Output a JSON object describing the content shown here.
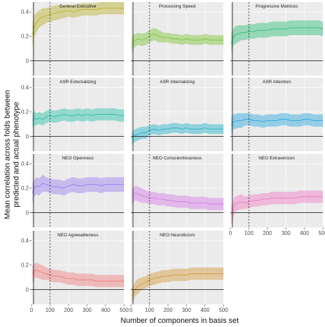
{
  "chart_data": {
    "type": "line",
    "xlabel": "Number of components in basis set",
    "ylabel_lines": [
      "Mean correlation across folds between",
      "predicted and actual phenotype"
    ],
    "xlim": [
      0,
      500
    ],
    "ylim": [
      -0.12,
      0.48
    ],
    "x_ticks": [
      0,
      100,
      200,
      300,
      400,
      500
    ],
    "y_ticks": [
      0,
      0.2,
      0.4
    ],
    "y_tick_labels": [
      "0",
      "0.2",
      "0.4"
    ],
    "reference_x": 100,
    "x": [
      5,
      15,
      25,
      40,
      60,
      80,
      100,
      125,
      150,
      175,
      200,
      225,
      250,
      275,
      300,
      325,
      350,
      375,
      400,
      425,
      450,
      475,
      500
    ],
    "panels": [
      {
        "title": "General Executive",
        "color": "#b8b02a",
        "mean": [
          0.21,
          0.28,
          0.31,
          0.34,
          0.36,
          0.37,
          0.38,
          0.39,
          0.4,
          0.4,
          0.41,
          0.4,
          0.41,
          0.42,
          0.42,
          0.42,
          0.42,
          0.43,
          0.43,
          0.43,
          0.43,
          0.43,
          0.43
        ],
        "halfwidth": [
          0.1,
          0.09,
          0.08,
          0.07,
          0.07,
          0.06,
          0.06,
          0.06,
          0.06,
          0.05,
          0.05,
          0.05,
          0.05,
          0.05,
          0.05,
          0.05,
          0.05,
          0.05,
          0.05,
          0.05,
          0.05,
          0.05,
          0.05
        ]
      },
      {
        "title": "Processing Speed",
        "color": "#7cc335",
        "mean": [
          0.13,
          0.16,
          0.17,
          0.18,
          0.17,
          0.18,
          0.2,
          0.22,
          0.2,
          0.19,
          0.19,
          0.18,
          0.18,
          0.17,
          0.18,
          0.17,
          0.17,
          0.17,
          0.18,
          0.17,
          0.17,
          0.17,
          0.17
        ],
        "halfwidth": [
          0.06,
          0.06,
          0.05,
          0.05,
          0.05,
          0.05,
          0.05,
          0.05,
          0.05,
          0.04,
          0.04,
          0.04,
          0.04,
          0.04,
          0.04,
          0.04,
          0.04,
          0.04,
          0.04,
          0.04,
          0.04,
          0.04,
          0.04
        ]
      },
      {
        "title": "Progressive Matrices",
        "color": "#2fbe78",
        "mean": [
          0.14,
          0.19,
          0.21,
          0.22,
          0.23,
          0.23,
          0.24,
          0.24,
          0.25,
          0.25,
          0.25,
          0.26,
          0.26,
          0.26,
          0.26,
          0.27,
          0.27,
          0.27,
          0.27,
          0.27,
          0.27,
          0.27,
          0.26
        ],
        "halfwidth": [
          0.08,
          0.07,
          0.07,
          0.07,
          0.06,
          0.06,
          0.06,
          0.06,
          0.06,
          0.06,
          0.06,
          0.06,
          0.06,
          0.06,
          0.06,
          0.06,
          0.06,
          0.06,
          0.06,
          0.06,
          0.06,
          0.06,
          0.06
        ]
      },
      {
        "title": "ASR Externalizing",
        "color": "#27c0a8",
        "mean": [
          0.13,
          0.15,
          0.14,
          0.15,
          0.14,
          0.16,
          0.17,
          0.16,
          0.17,
          0.18,
          0.17,
          0.17,
          0.18,
          0.17,
          0.18,
          0.17,
          0.18,
          0.18,
          0.18,
          0.18,
          0.18,
          0.17,
          0.17
        ],
        "halfwidth": [
          0.06,
          0.06,
          0.05,
          0.05,
          0.05,
          0.05,
          0.05,
          0.05,
          0.05,
          0.05,
          0.05,
          0.05,
          0.05,
          0.05,
          0.05,
          0.05,
          0.05,
          0.05,
          0.05,
          0.05,
          0.05,
          0.05,
          0.05
        ]
      },
      {
        "title": "ASR Internalizing",
        "color": "#22b4c9",
        "mean": [
          -0.02,
          0.0,
          0.01,
          0.02,
          0.03,
          0.03,
          0.05,
          0.06,
          0.05,
          0.06,
          0.06,
          0.07,
          0.07,
          0.06,
          0.07,
          0.06,
          0.06,
          0.06,
          0.07,
          0.06,
          0.06,
          0.06,
          0.06
        ],
        "halfwidth": [
          0.05,
          0.05,
          0.05,
          0.05,
          0.05,
          0.05,
          0.04,
          0.04,
          0.04,
          0.04,
          0.04,
          0.04,
          0.04,
          0.04,
          0.04,
          0.04,
          0.04,
          0.04,
          0.04,
          0.04,
          0.04,
          0.04,
          0.04
        ]
      },
      {
        "title": "ASR Attention",
        "color": "#2aa7e0",
        "mean": [
          0.09,
          0.12,
          0.12,
          0.13,
          0.13,
          0.14,
          0.14,
          0.13,
          0.13,
          0.12,
          0.13,
          0.13,
          0.13,
          0.14,
          0.14,
          0.13,
          0.13,
          0.13,
          0.14,
          0.14,
          0.13,
          0.13,
          0.13
        ],
        "halfwidth": [
          0.07,
          0.06,
          0.06,
          0.06,
          0.06,
          0.05,
          0.05,
          0.05,
          0.05,
          0.05,
          0.05,
          0.05,
          0.05,
          0.05,
          0.05,
          0.05,
          0.05,
          0.05,
          0.05,
          0.05,
          0.05,
          0.05,
          0.05
        ]
      },
      {
        "title": "NEO Openness",
        "color": "#9a7ef0",
        "mean": [
          0.16,
          0.2,
          0.22,
          0.21,
          0.24,
          0.23,
          0.22,
          0.21,
          0.21,
          0.2,
          0.22,
          0.23,
          0.22,
          0.22,
          0.23,
          0.23,
          0.23,
          0.22,
          0.23,
          0.23,
          0.23,
          0.23,
          0.23
        ],
        "halfwidth": [
          0.08,
          0.07,
          0.07,
          0.07,
          0.07,
          0.06,
          0.06,
          0.06,
          0.06,
          0.06,
          0.06,
          0.06,
          0.06,
          0.06,
          0.06,
          0.06,
          0.06,
          0.06,
          0.06,
          0.06,
          0.06,
          0.06,
          0.06
        ]
      },
      {
        "title": "NEO Conscientiousness",
        "color": "#d27ae6",
        "mean": [
          0.13,
          0.15,
          0.16,
          0.15,
          0.14,
          0.13,
          0.12,
          0.12,
          0.11,
          0.11,
          0.1,
          0.1,
          0.09,
          0.09,
          0.09,
          0.08,
          0.08,
          0.08,
          0.08,
          0.07,
          0.07,
          0.07,
          0.07
        ],
        "halfwidth": [
          0.07,
          0.06,
          0.06,
          0.06,
          0.06,
          0.05,
          0.05,
          0.05,
          0.05,
          0.05,
          0.05,
          0.05,
          0.05,
          0.05,
          0.05,
          0.05,
          0.05,
          0.05,
          0.05,
          0.05,
          0.05,
          0.05,
          0.05
        ]
      },
      {
        "title": "NEO Extraversion",
        "color": "#ef79c3",
        "mean": [
          -0.02,
          0.03,
          0.07,
          0.08,
          0.09,
          0.08,
          0.09,
          0.1,
          0.1,
          0.11,
          0.11,
          0.12,
          0.12,
          0.12,
          0.12,
          0.12,
          0.12,
          0.13,
          0.13,
          0.13,
          0.13,
          0.13,
          0.13
        ],
        "halfwidth": [
          0.08,
          0.07,
          0.06,
          0.06,
          0.06,
          0.05,
          0.05,
          0.05,
          0.05,
          0.05,
          0.05,
          0.05,
          0.05,
          0.05,
          0.05,
          0.05,
          0.05,
          0.05,
          0.05,
          0.05,
          0.05,
          0.05,
          0.05
        ]
      },
      {
        "title": "NEO Agreeableness",
        "color": "#ef7c7c",
        "mean": [
          0.13,
          0.15,
          0.16,
          0.15,
          0.14,
          0.13,
          0.12,
          0.11,
          0.11,
          0.1,
          0.09,
          0.09,
          0.08,
          0.08,
          0.08,
          0.08,
          0.07,
          0.07,
          0.07,
          0.07,
          0.07,
          0.07,
          0.07
        ],
        "halfwidth": [
          0.07,
          0.06,
          0.06,
          0.06,
          0.06,
          0.05,
          0.05,
          0.05,
          0.05,
          0.05,
          0.05,
          0.05,
          0.05,
          0.05,
          0.05,
          0.05,
          0.05,
          0.05,
          0.05,
          0.05,
          0.05,
          0.05,
          0.05
        ]
      },
      {
        "title": "NEO Neuroticism",
        "color": "#d29a3a",
        "mean": [
          -0.05,
          -0.02,
          0.01,
          0.03,
          0.05,
          0.06,
          0.08,
          0.09,
          0.1,
          0.11,
          0.11,
          0.12,
          0.12,
          0.12,
          0.12,
          0.13,
          0.13,
          0.13,
          0.13,
          0.13,
          0.13,
          0.13,
          0.13
        ],
        "halfwidth": [
          0.06,
          0.06,
          0.06,
          0.06,
          0.05,
          0.05,
          0.05,
          0.05,
          0.05,
          0.05,
          0.05,
          0.05,
          0.05,
          0.05,
          0.05,
          0.05,
          0.05,
          0.05,
          0.05,
          0.05,
          0.05,
          0.05,
          0.05
        ]
      }
    ]
  }
}
